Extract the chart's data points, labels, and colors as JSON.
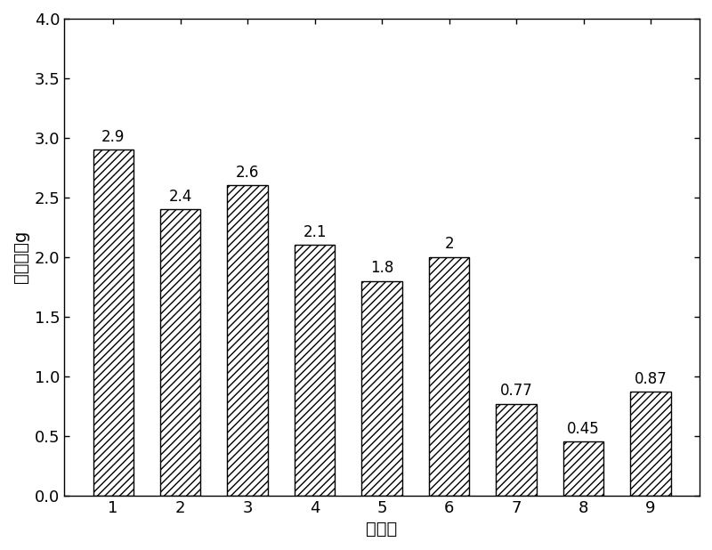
{
  "categories": [
    "1",
    "2",
    "3",
    "4",
    "5",
    "6",
    "7",
    "8",
    "9"
  ],
  "values": [
    2.9,
    2.4,
    2.6,
    2.1,
    1.8,
    2.0,
    0.77,
    0.45,
    0.87
  ],
  "labels": [
    "2.9",
    "2.4",
    "2.6",
    "2.1",
    "1.8",
    "2",
    "0.77",
    "0.45",
    "0.87"
  ],
  "xlabel": "实施例",
  "ylabel": "绝对失重g",
  "ylim": [
    0.0,
    4.0
  ],
  "yticks": [
    0.0,
    0.5,
    1.0,
    1.5,
    2.0,
    2.5,
    3.0,
    3.5,
    4.0
  ],
  "bar_facecolor": "#ffffff",
  "hatch": "////",
  "bar_edge_color": "#000000",
  "background_color": "#ffffff",
  "label_fontsize": 12,
  "axis_fontsize": 14,
  "tick_fontsize": 13,
  "bar_linewidth": 1.0
}
